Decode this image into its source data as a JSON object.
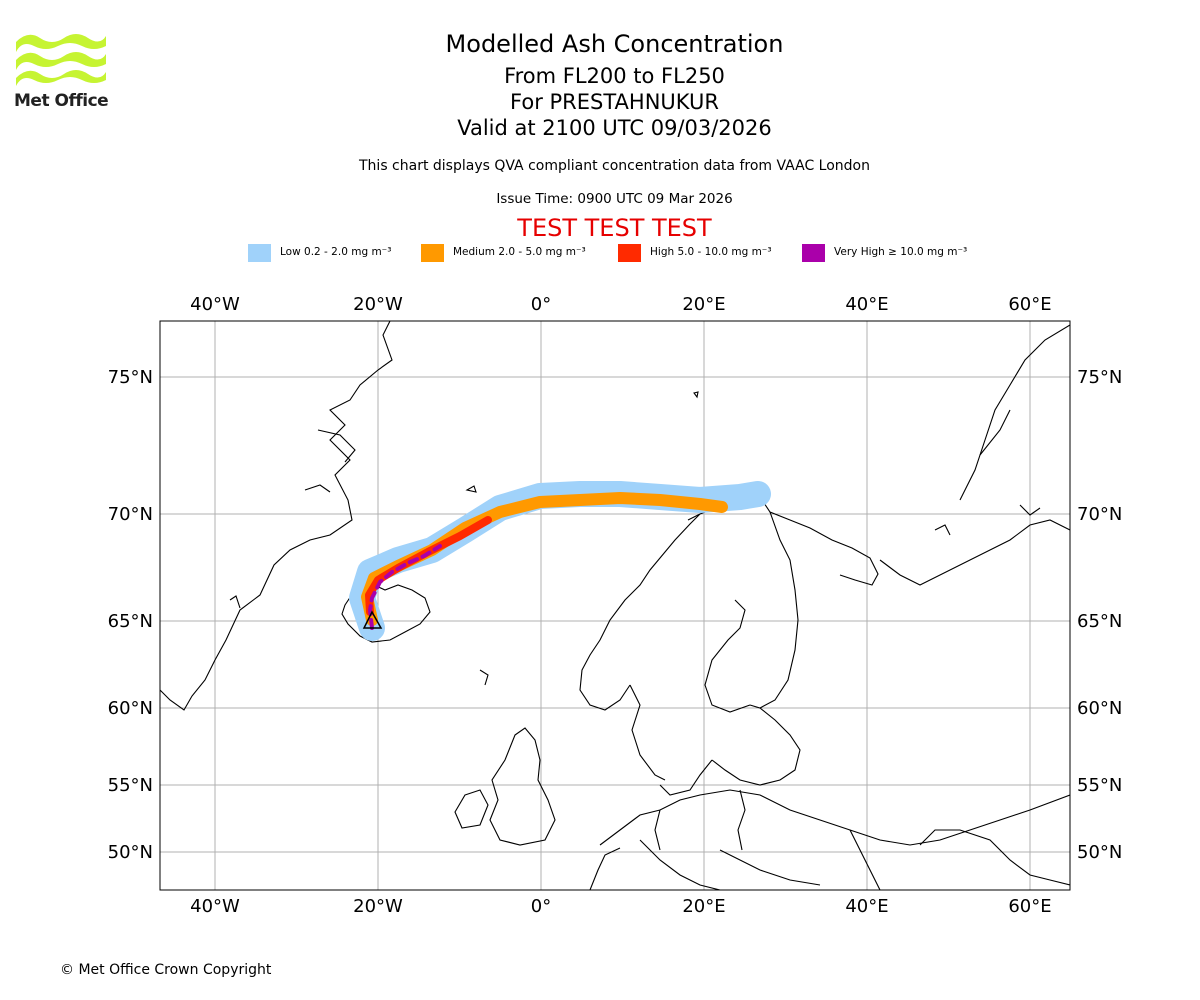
{
  "header": {
    "title": "Modelled Ash Concentration",
    "flight_levels": "From FL200 to FL250",
    "volcano": "For PRESTAHNUKUR",
    "valid_time": "Valid at 2100 UTC 09/03/2026",
    "disclaimer": "This chart displays QVA compliant concentration data from VAAC London",
    "issue_time": "Issue Time: 0900 UTC 09 Mar 2026",
    "test_banner": "TEST TEST TEST"
  },
  "logo": {
    "text": "Met Office"
  },
  "legend": [
    {
      "label": "Low 0.2 - 2.0 mg m⁻³",
      "color": "#a0d2fa"
    },
    {
      "label": "Medium 2.0 - 5.0 mg m⁻³",
      "color": "#ff9900"
    },
    {
      "label": "High 5.0 - 10.0 mg m⁻³",
      "color": "#ff2a00"
    },
    {
      "label": "Very High  ≥  10.0 mg m⁻³",
      "color": "#aa00aa"
    }
  ],
  "axes": {
    "lon_labels": [
      "40°W",
      "20°W",
      "0°",
      "20°E",
      "40°E",
      "60°E"
    ],
    "lat_labels": [
      "75°N",
      "70°N",
      "65°N",
      "60°N",
      "55°N",
      "50°N"
    ]
  },
  "colors": {
    "low": "#a0d2fa",
    "medium": "#ff9900",
    "high": "#ff2a00",
    "very_high": "#aa00aa",
    "grid": "#b0b0b0",
    "logo": "#c6f432"
  },
  "footer": {
    "copyright": "© Met Office Crown Copyright"
  }
}
